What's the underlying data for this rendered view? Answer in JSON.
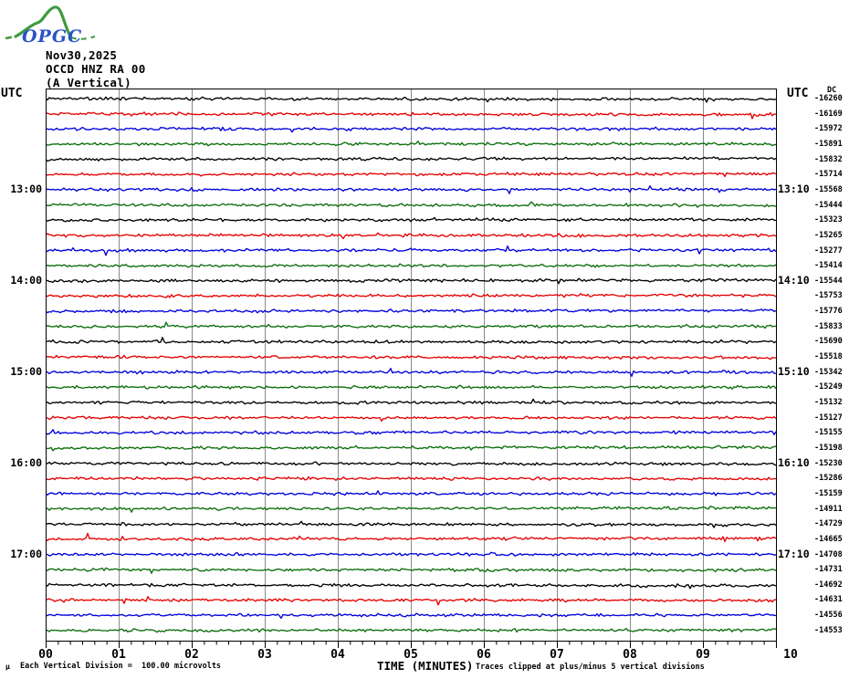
{
  "logo": {
    "text": "OPGC"
  },
  "header": {
    "date": "Nov30,2025",
    "station": "OCCD HNZ RA 00",
    "component": "(A Vertical)"
  },
  "axis": {
    "utc_left": "UTC",
    "utc_right": "UTC",
    "dc_header": "DC",
    "x_title": "TIME (MINUTES)"
  },
  "footer": {
    "mu": "µ",
    "scale_note": "Each Vertical Division =  100.00 microvolts",
    "clip_note": "Traces clipped at plus/minus 5 vertical divisions"
  },
  "colors": {
    "black": "#000000",
    "red": "#e60000",
    "blue": "#0000dd",
    "green": "#0a6e0a",
    "grid": "#8a8a8a",
    "border": "#000000",
    "logo_green": "#3f9a3f",
    "logo_blue": "#2a52c8"
  },
  "chart_data": {
    "type": "line",
    "variant": "helicorder-seismogram",
    "title": "OCCD HNZ RA 00 (A Vertical) Nov30,2025",
    "xlabel": "TIME (MINUTES)",
    "ylabel": "UTC",
    "x_range": [
      0,
      10
    ],
    "minutes_per_row": 10,
    "x_ticks": [
      "00",
      "01",
      "02",
      "03",
      "04",
      "05",
      "06",
      "07",
      "08",
      "09",
      "10"
    ],
    "x_minor_intervals_per_major": 6,
    "grid": "vertical gridlines at each minute",
    "legend": "none",
    "row_color_cycle": [
      "black",
      "red",
      "blue",
      "green"
    ],
    "row_count": 36,
    "amplitude_note": "flat low-amplitude background noise on every trace",
    "rows": [
      {
        "dc": -16260
      },
      {
        "dc": -16169
      },
      {
        "dc": -15972
      },
      {
        "dc": -15891
      },
      {
        "dc": -15832
      },
      {
        "dc": -15714
      },
      {
        "dc": -15568,
        "left": "13:00",
        "right": "13:10"
      },
      {
        "dc": -15444
      },
      {
        "dc": -15323
      },
      {
        "dc": -15265
      },
      {
        "dc": -15277
      },
      {
        "dc": -15414
      },
      {
        "dc": -15544,
        "left": "14:00",
        "right": "14:10"
      },
      {
        "dc": -15753
      },
      {
        "dc": -15776
      },
      {
        "dc": -15833
      },
      {
        "dc": -15690
      },
      {
        "dc": -15518
      },
      {
        "dc": -15342,
        "left": "15:00",
        "right": "15:10"
      },
      {
        "dc": -15249
      },
      {
        "dc": -15132
      },
      {
        "dc": -15127
      },
      {
        "dc": -15155
      },
      {
        "dc": -15198
      },
      {
        "dc": -15230,
        "left": "16:00",
        "right": "16:10"
      },
      {
        "dc": -15286
      },
      {
        "dc": -15159
      },
      {
        "dc": -14911
      },
      {
        "dc": -14729
      },
      {
        "dc": -14665
      },
      {
        "dc": -14708,
        "left": "17:00",
        "right": "17:10"
      },
      {
        "dc": -14731
      },
      {
        "dc": -14692
      },
      {
        "dc": -14631
      },
      {
        "dc": -14556
      },
      {
        "dc": -14553
      }
    ]
  }
}
